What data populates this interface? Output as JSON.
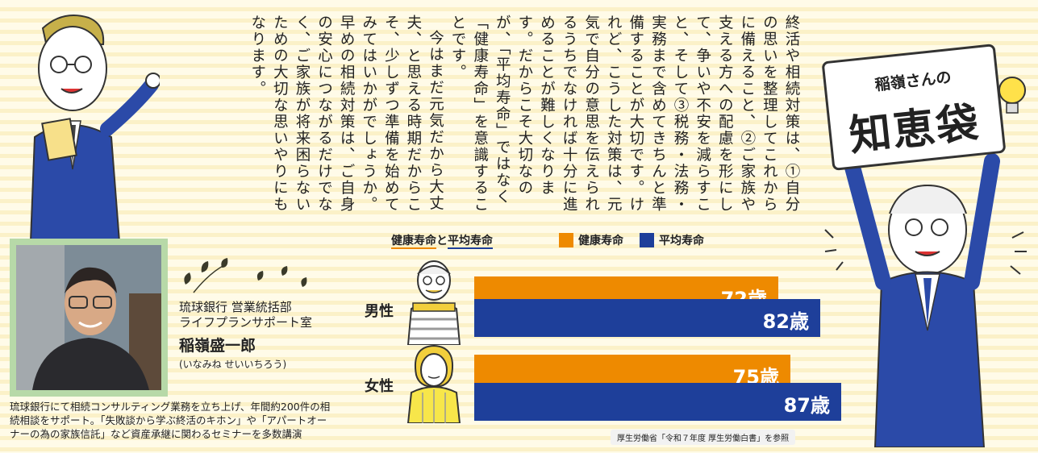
{
  "column": {
    "paragraphs": [
      "終活や相続対策は、①自分の思いを整理してこれからに備えること、②ご家族や支える方への配慮を形にして、争いや不安を減らすこと、そして③税務・法務・実務まで含めてきちんと準備することが大切です。けれど、こうした対策は、元気で自分の意思を伝えられるうちでなければ十分に進めることが難しくなります。だからこそ大切なのが、「平均寿命」ではなく「健康寿命」を意識することです。",
      "今はまだ元気だから大丈夫、と思える時期だからこそ、少しずつ準備を始めてみてはいかがでしょうか。早めの相続対策は、ご自身の安心につながるだけでなく、ご家族が将来困らないための大切な思いやりにもなります。"
    ]
  },
  "sign": {
    "subtitle": "稲嶺さんの",
    "title": "知恵袋"
  },
  "profile": {
    "org_line1": "琉球銀行 営業統括部",
    "org_line2": "ライフプランサポート室",
    "name": "稲嶺盛一郎",
    "reading": "(いなみね せいいちろう)",
    "description": "琉球銀行にて相続コンサルティング業務を立ち上げ、年間約200件の相続相談をサポート。「失敗談から学ぶ終活のキホン」や「アパートオーナーの為の家族信託」など資産承継に関わるセミナーを多数講演"
  },
  "chart_data": {
    "type": "bar",
    "title_part1": "健康寿命",
    "title_mid": "と",
    "title_part2": "平均寿命",
    "orientation": "horizontal",
    "categories": [
      "男性",
      "女性"
    ],
    "series": [
      {
        "name": "健康寿命",
        "color": "#ee8a00",
        "values": [
          72,
          75
        ],
        "labels": [
          "72歳",
          "75歳"
        ]
      },
      {
        "name": "平均寿命",
        "color": "#1e3f9a",
        "values": [
          82,
          87
        ],
        "labels": [
          "82歳",
          "87歳"
        ]
      }
    ],
    "source": "厚生労働省「令和７年度 厚生労働白書」を参照"
  }
}
